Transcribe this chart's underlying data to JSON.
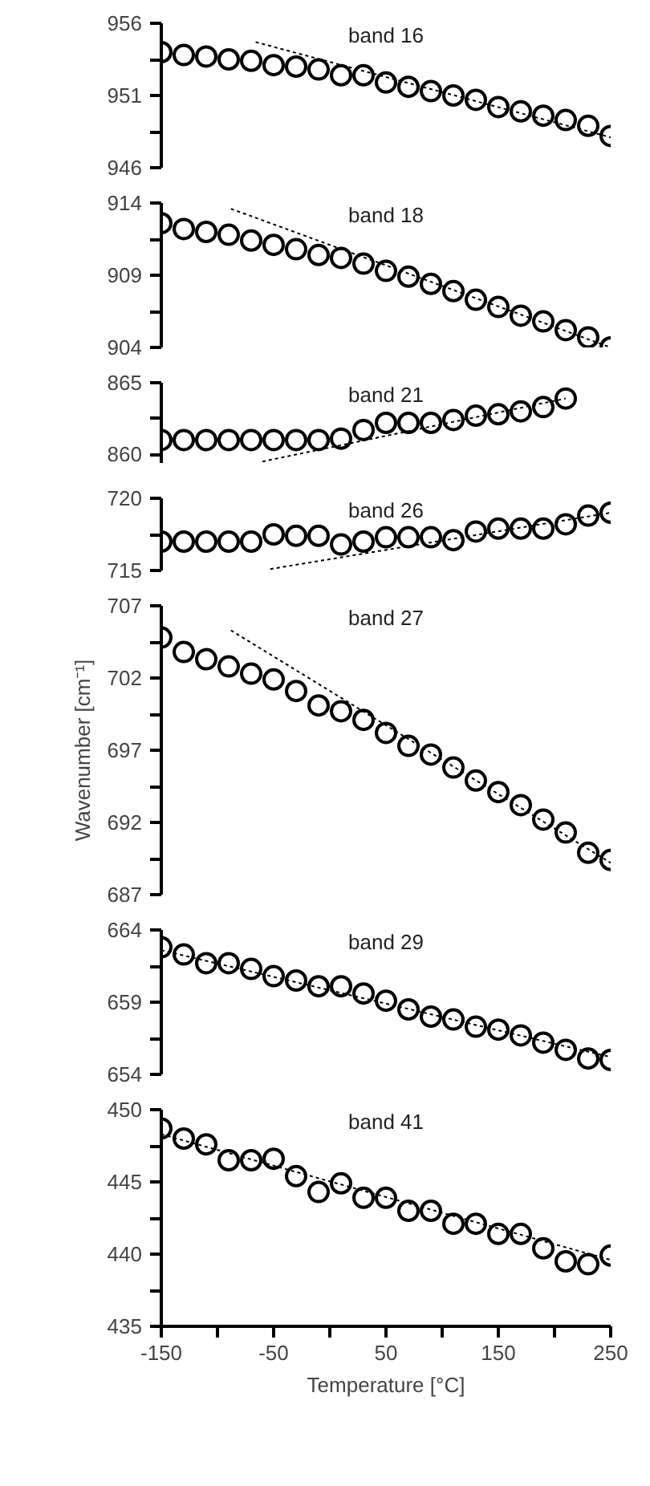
{
  "chart_data": [
    {
      "type": "scatter",
      "title": "band 16",
      "tick_labels": "y",
      "xlim": [
        -150,
        250
      ],
      "ylim": [
        946,
        956
      ],
      "yticks": [
        946,
        {
          "value": 948.5,
          "label": null
        },
        951,
        {
          "value": 953.5,
          "label": null
        },
        956
      ],
      "x": [
        -150,
        -130,
        -110,
        -90,
        -70,
        -50,
        -30,
        -10,
        10,
        30,
        50,
        70,
        90,
        110,
        130,
        150,
        170,
        190,
        210,
        230,
        250
      ],
      "series": [
        {
          "marker": "circle",
          "color": "#000000",
          "values": [
            954.0,
            953.8,
            953.7,
            953.5,
            953.4,
            953.1,
            953.0,
            952.8,
            952.4,
            952.4,
            951.9,
            951.6,
            951.3,
            951.0,
            950.7,
            950.2,
            949.9,
            949.6,
            949.3,
            948.9,
            948.2
          ]
        },
        {
          "type": "line",
          "line_style": "dotted",
          "color": "#000000",
          "x": [
            -66,
            250
          ],
          "values": [
            954.7,
            948.1
          ]
        }
      ]
    },
    {
      "type": "scatter",
      "title": "band 18",
      "tick_labels": "y",
      "xlim": [
        -150,
        250
      ],
      "ylim": [
        904,
        914
      ],
      "yticks": [
        904,
        {
          "value": 906.5,
          "label": null
        },
        909,
        {
          "value": 911.5,
          "label": null
        },
        914
      ],
      "x": [
        -150,
        -130,
        -110,
        -90,
        -70,
        -50,
        -30,
        -10,
        10,
        30,
        50,
        70,
        90,
        110,
        130,
        150,
        170,
        190,
        210,
        230,
        250
      ],
      "series": [
        {
          "marker": "circle",
          "color": "#000000",
          "values": [
            912.6,
            912.2,
            912.0,
            911.8,
            911.4,
            911.1,
            910.8,
            910.4,
            910.2,
            909.8,
            909.3,
            908.9,
            908.4,
            907.9,
            907.3,
            906.8,
            906.2,
            905.8,
            905.2,
            904.7,
            904.0
          ]
        },
        {
          "type": "line",
          "line_style": "dotted",
          "color": "#000000",
          "x": [
            -88,
            250
          ],
          "values": [
            913.6,
            904.0
          ]
        }
      ]
    },
    {
      "type": "scatter",
      "title": "band 21",
      "tick_labels": "y",
      "xlim": [
        -150,
        250
      ],
      "ylim": [
        859.4,
        865
      ],
      "yticks": [
        860,
        {
          "value": 862.5,
          "label": null
        },
        865
      ],
      "x": [
        -150,
        -130,
        -110,
        -90,
        -70,
        -50,
        -30,
        -10,
        10,
        30,
        50,
        70,
        90,
        110,
        130,
        150,
        170,
        190,
        210
      ],
      "series": [
        {
          "marker": "circle",
          "color": "#000000",
          "values": [
            861.0,
            861.0,
            861.0,
            861.0,
            861.0,
            861.0,
            861.0,
            861.0,
            861.1,
            861.7,
            862.2,
            862.2,
            862.2,
            862.4,
            862.7,
            862.8,
            863.0,
            863.3,
            863.9
          ]
        },
        {
          "type": "line",
          "line_style": "dotted",
          "color": "#000000",
          "x": [
            -60,
            210
          ],
          "values": [
            859.5,
            863.9
          ]
        }
      ]
    },
    {
      "type": "scatter",
      "title": "band 26",
      "tick_labels": "y",
      "xlim": [
        -150,
        250
      ],
      "ylim": [
        715,
        720
      ],
      "yticks": [
        715,
        {
          "value": 717.5,
          "label": null
        },
        720
      ],
      "x": [
        -150,
        -130,
        -110,
        -90,
        -70,
        -50,
        -30,
        -10,
        10,
        30,
        50,
        70,
        90,
        110,
        130,
        150,
        170,
        190,
        210,
        230,
        250
      ],
      "series": [
        {
          "marker": "circle",
          "color": "#000000",
          "values": [
            717.0,
            717.0,
            717.0,
            717.0,
            717.0,
            717.5,
            717.4,
            717.4,
            716.8,
            717.0,
            717.3,
            717.3,
            717.3,
            717.1,
            717.7,
            717.9,
            717.9,
            717.9,
            718.2,
            718.8,
            719.0
          ]
        },
        {
          "type": "line",
          "line_style": "dotted",
          "color": "#000000",
          "x": [
            -53,
            250
          ],
          "values": [
            715.1,
            719.0
          ]
        }
      ]
    },
    {
      "type": "scatter",
      "title": "band 27",
      "ylabel": "Wavenumber [cm⁻¹]",
      "tick_labels": "y",
      "xlim": [
        -150,
        250
      ],
      "ylim": [
        687,
        707
      ],
      "yticks": [
        687,
        {
          "value": 689.5,
          "label": null
        },
        692,
        {
          "value": 694.5,
          "label": null
        },
        697,
        {
          "value": 699.5,
          "label": null
        },
        702,
        {
          "value": 704.5,
          "label": null
        },
        707
      ],
      "x": [
        -150,
        -130,
        -110,
        -90,
        -70,
        -50,
        -30,
        -10,
        10,
        30,
        50,
        70,
        90,
        110,
        130,
        150,
        170,
        190,
        210,
        230,
        250
      ],
      "series": [
        {
          "marker": "circle",
          "color": "#000000",
          "values": [
            704.8,
            703.8,
            703.3,
            702.8,
            702.3,
            701.9,
            701.1,
            700.1,
            699.7,
            699.1,
            698.2,
            697.3,
            696.7,
            695.8,
            694.9,
            694.1,
            693.2,
            692.2,
            691.3,
            689.9,
            689.4
          ]
        },
        {
          "type": "line",
          "line_style": "dotted",
          "color": "#000000",
          "x": [
            -88,
            250
          ],
          "values": [
            705.3,
            689.2
          ]
        }
      ]
    },
    {
      "type": "scatter",
      "title": "band 29",
      "tick_labels": "y",
      "xlim": [
        -150,
        250
      ],
      "ylim": [
        654,
        664
      ],
      "yticks": [
        654,
        {
          "value": 656.5,
          "label": null
        },
        659,
        {
          "value": 661.5,
          "label": null
        },
        664
      ],
      "x": [
        -150,
        -130,
        -110,
        -90,
        -70,
        -50,
        -30,
        -10,
        10,
        30,
        50,
        70,
        90,
        110,
        130,
        150,
        170,
        190,
        210,
        230,
        250
      ],
      "series": [
        {
          "marker": "circle",
          "color": "#000000",
          "values": [
            662.8,
            662.3,
            661.7,
            661.7,
            661.3,
            660.8,
            660.5,
            660.1,
            660.1,
            659.6,
            659.1,
            658.5,
            658.0,
            657.8,
            657.3,
            657.1,
            656.7,
            656.2,
            655.7,
            655.1,
            655.0
          ]
        },
        {
          "type": "line",
          "line_style": "dotted",
          "color": "#000000",
          "x": [
            -150,
            250
          ],
          "values": [
            662.6,
            655.2
          ]
        }
      ]
    },
    {
      "type": "scatter",
      "title": "band 41",
      "xlabel": "Temperature [°C]",
      "xlim": [
        -150,
        250
      ],
      "ylim": [
        435,
        450
      ],
      "xticks": [
        -150,
        {
          "value": -100,
          "label": null
        },
        -50,
        {
          "value": 0,
          "label": null
        },
        50,
        {
          "value": 100,
          "label": null
        },
        150,
        {
          "value": 200,
          "label": null
        },
        250
      ],
      "yticks": [
        435,
        {
          "value": 437.5,
          "label": null
        },
        440,
        {
          "value": 442.5,
          "label": null
        },
        445,
        {
          "value": 447.5,
          "label": null
        },
        450
      ],
      "x": [
        -150,
        -130,
        -110,
        -90,
        -70,
        -50,
        -30,
        -10,
        10,
        30,
        50,
        70,
        90,
        110,
        130,
        150,
        170,
        190,
        210,
        230,
        250
      ],
      "series": [
        {
          "marker": "circle",
          "color": "#000000",
          "values": [
            448.7,
            448.0,
            447.6,
            446.5,
            446.5,
            446.6,
            445.4,
            444.3,
            444.9,
            443.9,
            443.9,
            443.0,
            443.0,
            442.1,
            442.1,
            441.4,
            441.4,
            440.4,
            439.5,
            439.3,
            439.9
          ]
        },
        {
          "type": "line",
          "line_style": "dotted",
          "color": "#000000",
          "x": [
            -150,
            250
          ],
          "values": [
            448.3,
            439.6
          ]
        }
      ]
    }
  ]
}
